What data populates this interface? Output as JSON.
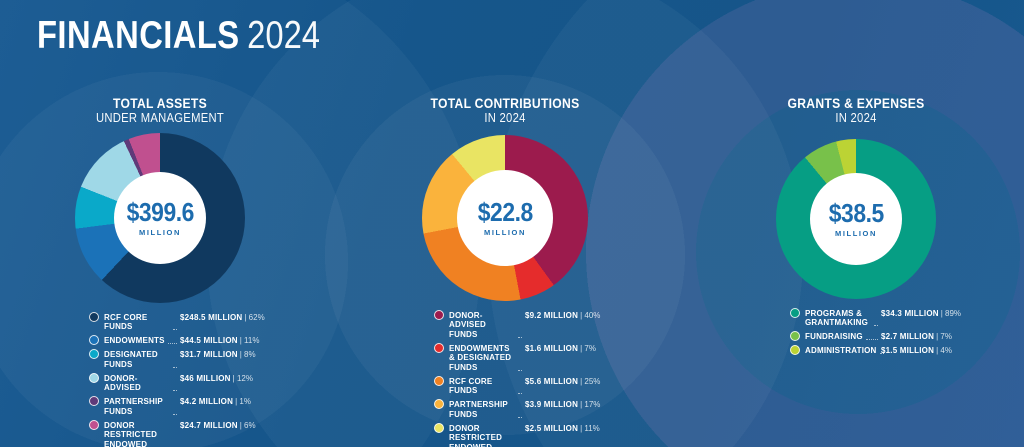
{
  "page": {
    "title_bold": "FINANCIALS",
    "title_light": "2024"
  },
  "colors": {
    "background": "#0d4f86",
    "center_text": "#1d6cae",
    "ring_tint_right": "#b794cb"
  },
  "chart_data": [
    {
      "type": "pie",
      "variant": "donut",
      "title": "TOTAL ASSETS",
      "subtitle": "UNDER MANAGEMENT",
      "center_label": "$399.6",
      "center_sublabel": "MILLION",
      "total_millions": 399.6,
      "legend_position": "bottom",
      "slices": [
        {
          "label": "RCF CORE FUNDS",
          "value_millions": 248.5,
          "pct": 62,
          "amount_label": "$248.5 MILLION",
          "pct_label": "| 62%",
          "color": "#10395f"
        },
        {
          "label": "ENDOWMENTS",
          "value_millions": 44.5,
          "pct": 11,
          "amount_label": "$44.5 MILLION",
          "pct_label": "| 11%",
          "color": "#1b72b8"
        },
        {
          "label": "DESIGNATED FUNDS",
          "value_millions": 31.7,
          "pct": 8,
          "amount_label": "$31.7 MILLION",
          "pct_label": "| 8%",
          "color": "#0aa9c9"
        },
        {
          "label": "DONOR-ADVISED",
          "value_millions": 46,
          "pct": 12,
          "amount_label": "$46 MILLION",
          "pct_label": "| 12%",
          "color": "#9fd8e7"
        },
        {
          "label": "PARTNERSHIP FUNDS",
          "value_millions": 4.2,
          "pct": 1,
          "amount_label": "$4.2 MILLION",
          "pct_label": "| 1%",
          "color": "#5f3a79"
        },
        {
          "label": "DONOR RESTRICTED ENDOWED FUNDS",
          "value_millions": 24.7,
          "pct": 6,
          "amount_label": "$24.7 MILLION",
          "pct_label": "| 6%",
          "color": "#c0508f"
        }
      ]
    },
    {
      "type": "pie",
      "variant": "donut",
      "title": "TOTAL CONTRIBUTIONS",
      "subtitle": "IN 2024",
      "center_label": "$22.8",
      "center_sublabel": "MILLION",
      "total_millions": 22.8,
      "legend_position": "bottom",
      "slices": [
        {
          "label": "DONOR-ADVISED FUNDS",
          "value_millions": 9.2,
          "pct": 40,
          "amount_label": "$9.2 MILLION",
          "pct_label": "| 40%",
          "color": "#9c1b4d"
        },
        {
          "label": "ENDOWMENTS & DESIGNATED FUNDS",
          "value_millions": 1.6,
          "pct": 7,
          "amount_label": "$1.6 MILLION",
          "pct_label": "| 7%",
          "color": "#e52c2c"
        },
        {
          "label": "RCF CORE FUNDS",
          "value_millions": 5.6,
          "pct": 25,
          "amount_label": "$5.6 MILLION",
          "pct_label": "| 25%",
          "color": "#f08122"
        },
        {
          "label": "PARTNERSHIP FUNDS",
          "value_millions": 3.9,
          "pct": 17,
          "amount_label": "$3.9 MILLION",
          "pct_label": "| 17%",
          "color": "#fab33c"
        },
        {
          "label": "DONOR RESTRICTED ENDOWED FUNDS",
          "value_millions": 2.5,
          "pct": 11,
          "amount_label": "$2.5 MILLION",
          "pct_label": "| 11%",
          "color": "#e9e463"
        }
      ]
    },
    {
      "type": "pie",
      "variant": "donut",
      "title": "GRANTS & EXPENSES",
      "subtitle": "IN 2024",
      "center_label": "$38.5",
      "center_sublabel": "MILLION",
      "total_millions": 38.5,
      "legend_position": "bottom",
      "slices": [
        {
          "label": "PROGRAMS & GRANTMAKING",
          "value_millions": 34.3,
          "pct": 89,
          "amount_label": "$34.3 MILLION",
          "pct_label": "| 89%",
          "color": "#069e84"
        },
        {
          "label": "FUNDRAISING",
          "value_millions": 2.7,
          "pct": 7,
          "amount_label": "$2.7 MILLION",
          "pct_label": "| 7%",
          "color": "#78c14a"
        },
        {
          "label": "ADMINISTRATION",
          "value_millions": 1.5,
          "pct": 4,
          "amount_label": "$1.5 MILLION",
          "pct_label": "| 4%",
          "color": "#bcd334"
        }
      ]
    }
  ]
}
